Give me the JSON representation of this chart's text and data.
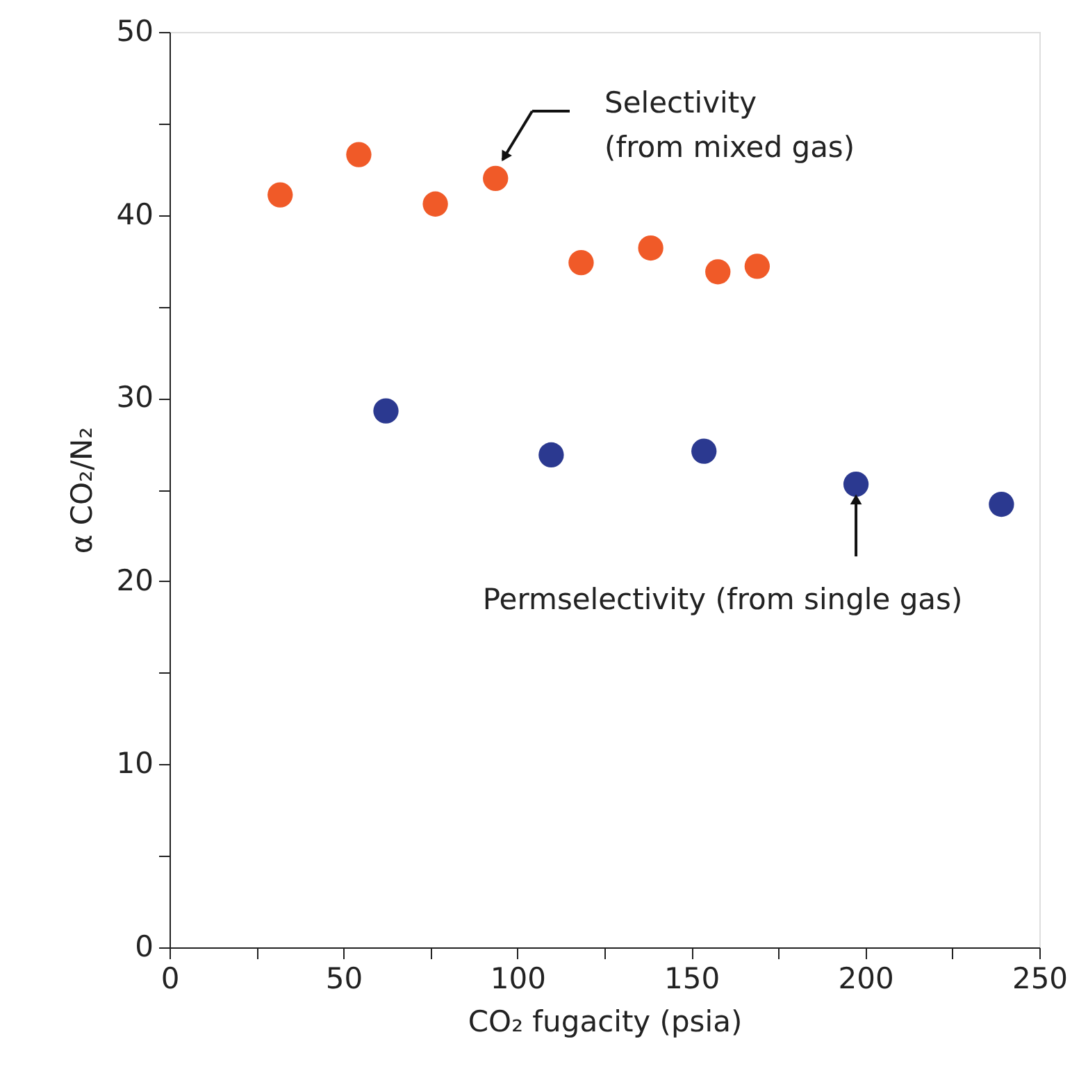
{
  "chart_data": {
    "type": "scatter",
    "xlabel": "CO₂ fugacity (psia)",
    "ylabel": "α CO₂/N₂",
    "xlim": [
      0,
      250
    ],
    "xticks": [
      0,
      {
        "value": 25,
        "label": null
      },
      50,
      {
        "value": 75,
        "label": null
      },
      100,
      {
        "value": 125,
        "label": null
      },
      150,
      {
        "value": 175,
        "label": null
      },
      200,
      {
        "value": 225,
        "label": null
      },
      250
    ],
    "ylim": [
      0,
      50
    ],
    "yticks": [
      0,
      {
        "value": 5,
        "label": null
      },
      10,
      {
        "value": 15,
        "label": null
      },
      20,
      {
        "value": 25,
        "label": null
      },
      30,
      {
        "value": 35,
        "label": null
      },
      40,
      {
        "value": 45,
        "label": null
      },
      50
    ],
    "grid": false,
    "legend": false,
    "marker": "circle",
    "series": [
      {
        "color": "#f05a28",
        "x": [
          31.8,
          54.4,
          76.4,
          93.7,
          118.3,
          138.3,
          157.6,
          168.9
        ],
        "values": [
          41.1,
          43.3,
          40.6,
          42.0,
          37.4,
          38.2,
          36.9,
          37.2
        ]
      },
      {
        "color": "#2b3990",
        "x": [
          62.2,
          109.7,
          153.6,
          197.3,
          239.1
        ],
        "values": [
          29.3,
          26.9,
          27.1,
          25.3,
          24.2
        ]
      }
    ],
    "annotations": [
      "Selectivity\n(from mixed gas)",
      {
        "text": "Permselectivity (from single gas)",
        "x": 197.3,
        "y": 25.3
      }
    ]
  }
}
